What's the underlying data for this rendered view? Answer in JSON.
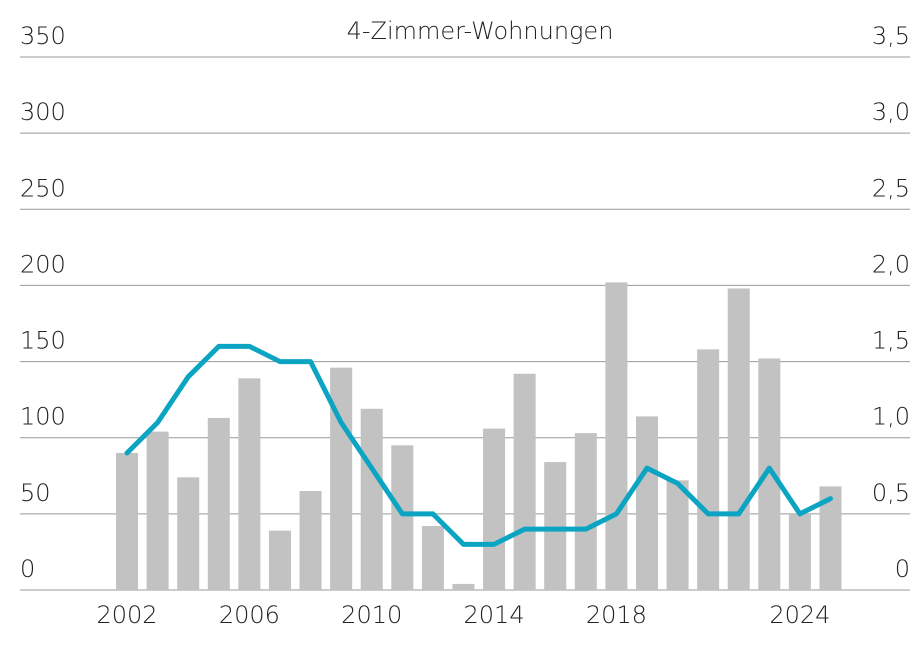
{
  "chart_data": {
    "type": "bar-line",
    "title": "4-Zimmer-Wohnungen",
    "x": [
      2002,
      2003,
      2004,
      2005,
      2006,
      2007,
      2008,
      2009,
      2010,
      2011,
      2012,
      2013,
      2014,
      2015,
      2016,
      2017,
      2018,
      2019,
      2020,
      2021,
      2022,
      2023,
      2024,
      2025
    ],
    "xlim": [
      1998.5,
      2027.6
    ],
    "xticks": [
      2002,
      2006,
      2010,
      2014,
      2018,
      2024
    ],
    "series": [
      {
        "type": "bar",
        "color": "#c1c2c1",
        "values": [
          90,
          104,
          74,
          113,
          139,
          39,
          65,
          146,
          119,
          95,
          42,
          4,
          106,
          142,
          84,
          103,
          202,
          114,
          72,
          158,
          198,
          152,
          50,
          68
        ]
      },
      {
        "type": "line",
        "axis": "y2",
        "color": "#0ba5c3",
        "values": [
          0.9,
          1.1,
          1.4,
          1.6,
          1.6,
          1.5,
          1.5,
          1.1,
          0.8,
          0.5,
          0.5,
          0.3,
          0.3,
          0.4,
          0.4,
          0.4,
          0.5,
          0.8,
          0.7,
          0.5,
          0.5,
          0.8,
          0.5,
          0.6
        ]
      }
    ],
    "ylim": [
      0,
      350
    ],
    "yticks": [
      0,
      50,
      100,
      150,
      200,
      250,
      300,
      350
    ],
    "y2lim": [
      0,
      3.5
    ],
    "y2ticks": [
      0,
      {
        "value": 0.5,
        "label": "0,5"
      },
      {
        "value": 1.0,
        "label": "1,0"
      },
      {
        "value": 1.5,
        "label": "1,5"
      },
      {
        "value": 2.0,
        "label": "2,0"
      },
      {
        "value": 2.5,
        "label": "2,5"
      },
      {
        "value": 3.0,
        "label": "3,0"
      },
      {
        "value": 3.5,
        "label": "3,5"
      }
    ],
    "grid": true
  }
}
